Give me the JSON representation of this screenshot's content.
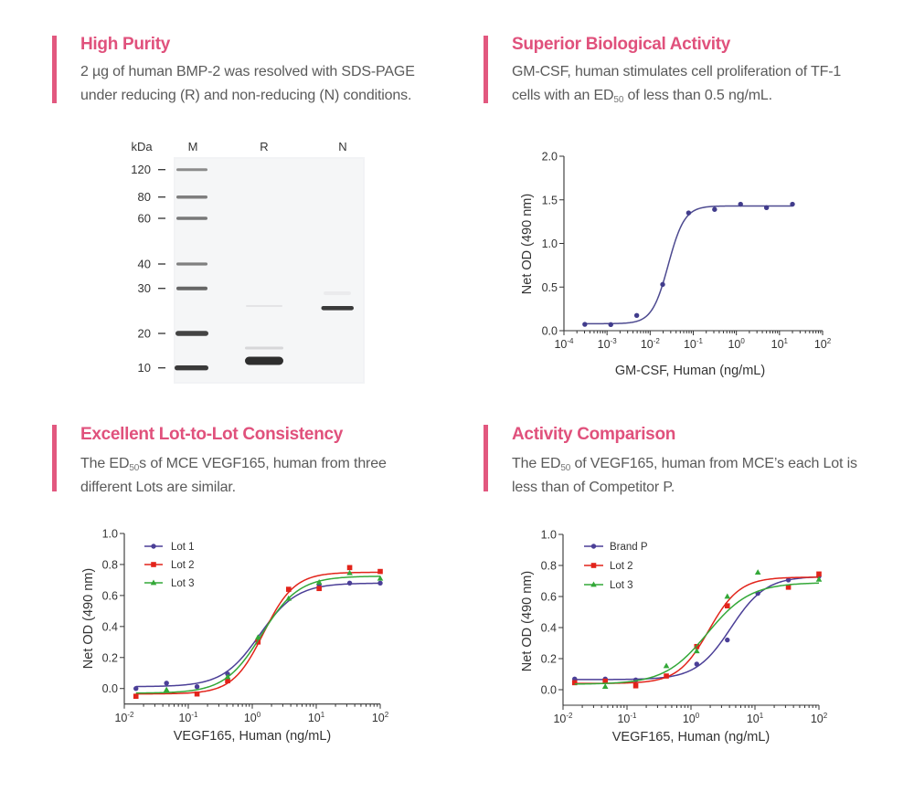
{
  "page": {
    "accent_color": "#e0517c",
    "bar_color": "#e2587f",
    "text_color": "#5a5a5a"
  },
  "sections": [
    {
      "title": "High Purity",
      "lines": [
        {
          "pre": "2 µg of human BMP-2  was resolved with SDS-PAGE",
          "sub": "",
          "post": ""
        },
        {
          "pre": "under reducing (R) and non-reducing (N) conditions.",
          "sub": "",
          "post": ""
        }
      ]
    },
    {
      "title": "Superior Biological Activity",
      "lines": [
        {
          "pre": "GM-CSF, human stimulates cell proliferation of TF-1",
          "sub": "",
          "post": ""
        },
        {
          "pre": "cells with an ED",
          "sub": "50",
          "post": " of less than 0.5 ng/mL."
        }
      ]
    },
    {
      "title": "Excellent Lot-to-Lot Consistency",
      "lines": [
        {
          "pre": "The ED",
          "sub": "50",
          "post": "s of MCE VEGF165, human from three"
        },
        {
          "pre": "different Lots are similar.",
          "sub": "",
          "post": ""
        }
      ]
    },
    {
      "title": "Activity Comparison",
      "lines": [
        {
          "pre": "The ED",
          "sub": "50",
          "post": " of VEGF165, human from MCE’s each Lot is"
        },
        {
          "pre": "less than of Competitor P.",
          "sub": "",
          "post": ""
        }
      ]
    }
  ],
  "gel": {
    "unit_label": "kDa",
    "lanes": [
      "M",
      "R",
      "N"
    ],
    "markers": [
      "120",
      "80",
      "60",
      "40",
      "30",
      "20",
      "10"
    ],
    "bands": [
      {
        "lane": "R",
        "approx_kDa": 12,
        "intensity": "strong"
      },
      {
        "lane": "N",
        "approx_kDa": 25,
        "intensity": "strong"
      }
    ]
  },
  "chart_data": [
    {
      "id": "gmcsf",
      "type": "scatter",
      "title": "",
      "xlabel": "GM-CSF, Human (ng/mL)",
      "ylabel": "Net OD (490 nm)",
      "xscale": "log",
      "xlim": [
        0.0001,
        100
      ],
      "ylim": [
        0,
        2.0
      ],
      "x_tick_labels": [
        {
          "base": "10",
          "exp": "-4"
        },
        {
          "base": "10",
          "exp": "-3"
        },
        {
          "base": "10",
          "exp": "-2"
        },
        {
          "base": "10",
          "exp": "-1"
        },
        {
          "base": "10",
          "exp": "0"
        },
        {
          "base": "10",
          "exp": "1"
        },
        {
          "base": "10",
          "exp": "2"
        }
      ],
      "y_ticks": [
        0,
        0.5,
        1.0,
        1.5,
        2.0
      ],
      "y_tick_labels": [
        "0.0",
        "0.5",
        "1.0",
        "1.5",
        "2.0"
      ],
      "grid": false,
      "legend": null,
      "series": [
        {
          "name": "GM-CSF, Human",
          "color": "#413c8c",
          "curve_color": "#4d4a90",
          "marker": "circle",
          "x": [
            0.000305,
            0.00122,
            0.00488,
            0.0195,
            0.078,
            0.3125,
            1.25,
            5,
            20
          ],
          "y": [
            0.073,
            0.07,
            0.175,
            0.53,
            1.35,
            1.39,
            1.45,
            1.41,
            1.45
          ],
          "fit": {
            "model": "4PL",
            "bottom": 0.08,
            "top": 1.43,
            "ec50": 0.0263,
            "hill": 2.3
          }
        }
      ]
    },
    {
      "id": "lot-to-lot",
      "type": "scatter",
      "title": "",
      "xlabel": "VEGF165, Human (ng/mL)",
      "ylabel": "Net OD (490 nm)",
      "xscale": "log",
      "xlim": [
        0.01,
        100
      ],
      "ylim": [
        -0.1,
        1.0
      ],
      "x_tick_labels": [
        {
          "base": "10",
          "exp": "-2"
        },
        {
          "base": "10",
          "exp": "-1"
        },
        {
          "base": "10",
          "exp": "0"
        },
        {
          "base": "10",
          "exp": "1"
        },
        {
          "base": "10",
          "exp": "2"
        }
      ],
      "y_ticks": [
        0,
        0.2,
        0.4,
        0.6,
        0.8,
        1.0
      ],
      "y_tick_labels": [
        "0.0",
        "0.2",
        "0.4",
        "0.6",
        "0.8",
        "1.0"
      ],
      "grid": false,
      "legend": "top-left",
      "series": [
        {
          "name": "Lot 1",
          "color": "#4b3f97",
          "curve_color": "#4b3f97",
          "marker": "circle",
          "x": [
            0.0152,
            0.0457,
            0.137,
            0.412,
            1.23,
            3.7,
            11.1,
            33.3,
            100
          ],
          "y": [
            0.0,
            0.035,
            0.012,
            0.094,
            null,
            null,
            0.67,
            0.68,
            0.68
          ],
          "fit": {
            "model": "4PL",
            "bottom": 0.012,
            "top": 0.68,
            "ec50": 1.3,
            "hill": 1.5
          }
        },
        {
          "name": "Lot 2",
          "color": "#e2231a",
          "curve_color": "#e2231a",
          "marker": "square",
          "x": [
            0.0152,
            0.0457,
            0.137,
            0.412,
            1.23,
            3.7,
            11.1,
            33.3,
            100
          ],
          "y": [
            -0.05,
            null,
            -0.035,
            0.05,
            0.3,
            0.64,
            0.645,
            0.78,
            0.755
          ],
          "fit": {
            "model": "4PL",
            "bottom": -0.035,
            "top": 0.75,
            "ec50": 1.5,
            "hill": 1.8
          }
        },
        {
          "name": "Lot 3",
          "color": "#33a838",
          "curve_color": "#33a838",
          "marker": "triangle",
          "x": [
            0.0152,
            0.0457,
            0.137,
            0.412,
            1.23,
            3.7,
            11.1,
            33.3,
            100
          ],
          "y": [
            null,
            -0.008,
            null,
            0.075,
            0.33,
            0.58,
            0.685,
            0.745,
            0.71
          ],
          "fit": {
            "model": "4PL",
            "bottom": -0.03,
            "top": 0.725,
            "ec50": 1.4,
            "hill": 1.5
          }
        }
      ]
    },
    {
      "id": "activity-comparison",
      "type": "scatter",
      "title": "",
      "xlabel": "VEGF165, Human (ng/mL)",
      "ylabel": "Net OD (490 nm)",
      "xscale": "log",
      "xlim": [
        0.01,
        100
      ],
      "ylim": [
        -0.1,
        1.0
      ],
      "x_tick_labels": [
        {
          "base": "10",
          "exp": "-2"
        },
        {
          "base": "10",
          "exp": "-1"
        },
        {
          "base": "10",
          "exp": "0"
        },
        {
          "base": "10",
          "exp": "1"
        },
        {
          "base": "10",
          "exp": "2"
        }
      ],
      "y_ticks": [
        0,
        0.2,
        0.4,
        0.6,
        0.8,
        1.0
      ],
      "y_tick_labels": [
        "0.0",
        "0.2",
        "0.4",
        "0.6",
        "0.8",
        "1.0"
      ],
      "grid": false,
      "legend": "top-left",
      "series": [
        {
          "name": "Brand P",
          "color": "#4b3f97",
          "curve_color": "#4b3f97",
          "marker": "circle",
          "x": [
            0.0152,
            0.0457,
            0.137,
            0.412,
            1.23,
            3.7,
            11.1,
            33.3,
            100
          ],
          "y": [
            0.069,
            0.069,
            0.063,
            null,
            0.165,
            0.32,
            0.62,
            0.706,
            0.73
          ],
          "fit": {
            "model": "4PL",
            "bottom": 0.065,
            "top": 0.73,
            "ec50": 4.2,
            "hill": 1.6
          }
        },
        {
          "name": "Lot 2",
          "color": "#e2231a",
          "curve_color": "#e2231a",
          "marker": "square",
          "x": [
            0.0152,
            0.0457,
            0.137,
            0.412,
            1.23,
            3.7,
            11.1,
            33.3,
            100
          ],
          "y": [
            0.045,
            0.055,
            0.025,
            0.088,
            0.278,
            0.54,
            null,
            0.66,
            0.745
          ],
          "fit": {
            "model": "4PL",
            "bottom": 0.04,
            "top": 0.725,
            "ec50": 1.9,
            "hill": 1.8
          }
        },
        {
          "name": "Lot 3",
          "color": "#33a838",
          "curve_color": "#33a838",
          "marker": "triangle",
          "x": [
            0.0152,
            0.0457,
            0.137,
            0.412,
            1.23,
            3.7,
            11.1,
            33.3,
            100
          ],
          "y": [
            null,
            0.02,
            null,
            0.153,
            0.249,
            0.6,
            0.755,
            null,
            0.71
          ],
          "fit": {
            "model": "4PL",
            "bottom": 0.035,
            "top": 0.69,
            "ec50": 1.8,
            "hill": 1.3
          }
        }
      ]
    }
  ]
}
